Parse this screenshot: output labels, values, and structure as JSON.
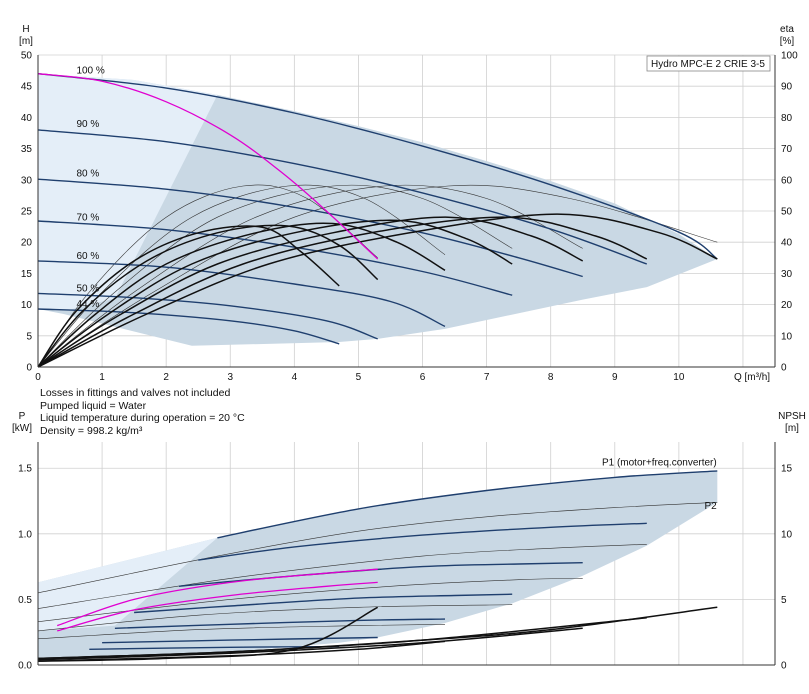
{
  "colors": {
    "envelope": "#c9d8e4",
    "envelope_light": "#e4eef8",
    "curve_blue": "#1f3f6e",
    "curve_black": "#111111",
    "curve_magenta": "#e000d0",
    "grid": "#d0d0d0"
  },
  "notes": [
    "Losses in fittings and valves not included",
    "Pumped liquid = Water",
    "Liquid temperature during operation = 20 °C",
    "Density = 998.2 kg/m³"
  ],
  "chart_data": [
    {
      "type": "line",
      "title": "Hydro MPC-E 2 CRIE 3-5",
      "ylabel_left": "H\n[m]",
      "ylabel_right": "eta\n[%]",
      "xlabel": "Q [m³/h]",
      "xlim": [
        0,
        11.5
      ],
      "ylim_left": [
        0,
        50
      ],
      "ylim_right": [
        0,
        100
      ],
      "xticks": [
        0,
        1,
        2,
        3,
        4,
        5,
        6,
        7,
        8,
        9,
        10
      ],
      "yticks_left": [
        0,
        5,
        10,
        15,
        20,
        25,
        30,
        35,
        40,
        45,
        50
      ],
      "yticks_right": [
        0,
        10,
        20,
        30,
        40,
        50,
        60,
        70,
        80,
        90,
        100
      ],
      "grid": true,
      "speed_labels": [
        {
          "text": "100 %",
          "x": 0.6,
          "y": 47
        },
        {
          "text": "90 %",
          "x": 0.6,
          "y": 38.5
        },
        {
          "text": "80 %",
          "x": 0.6,
          "y": 30.5
        },
        {
          "text": "70 %",
          "x": 0.6,
          "y": 23.5
        },
        {
          "text": "60 %",
          "x": 0.6,
          "y": 17.3
        },
        {
          "text": "50 %",
          "x": 0.6,
          "y": 12.1
        },
        {
          "text": "44 %",
          "x": 0.6,
          "y": 9.6
        }
      ],
      "envelope": {
        "x": [
          0,
          0,
          1.5,
          2.8,
          4.0,
          5.0,
          6.0,
          7.0,
          8.0,
          9.0,
          10.0,
          10.6,
          9.5,
          8.5,
          7.4,
          6.35,
          5.3,
          4.7,
          2.4,
          0.4
        ],
        "y": [
          9.3,
          47,
          46,
          43.6,
          41,
          38.6,
          36,
          33,
          29.8,
          26.2,
          21.3,
          17.3,
          12.8,
          10.8,
          8.4,
          6.1,
          4.5,
          4,
          3.4,
          8.5
        ]
      },
      "envelope_light": {
        "x": [
          0,
          0,
          1.5,
          2.8,
          1.2,
          0.5
        ],
        "y": [
          9.3,
          47,
          46,
          43.6,
          11,
          9.2
        ]
      },
      "series": [
        {
          "name": "100 %",
          "color": "blue",
          "x": [
            0,
            2,
            4,
            6,
            8,
            10,
            10.6
          ],
          "y": [
            47,
            44.7,
            40.7,
            35.4,
            29.2,
            21.6,
            17.3
          ]
        },
        {
          "name": "90 %",
          "color": "blue",
          "x": [
            0,
            2,
            4,
            6,
            8,
            9.5
          ],
          "y": [
            38,
            36.1,
            32.6,
            27.9,
            22.1,
            16.5
          ]
        },
        {
          "name": "80 %",
          "color": "blue",
          "x": [
            0,
            2,
            4,
            6,
            7.5,
            8.5
          ],
          "y": [
            30.1,
            28.5,
            25.6,
            21.5,
            17.5,
            14.5
          ]
        },
        {
          "name": "70 %",
          "color": "blue",
          "x": [
            0,
            2,
            4,
            6,
            7.4
          ],
          "y": [
            23.4,
            22.0,
            19.2,
            15.3,
            11.5
          ]
        },
        {
          "name": "60 %",
          "color": "blue",
          "x": [
            0,
            2,
            4,
            5.5,
            6.35
          ],
          "y": [
            17.0,
            16.0,
            13.3,
            10.5,
            6.5
          ]
        },
        {
          "name": "50 %",
          "color": "blue",
          "x": [
            0,
            1.5,
            3,
            4.5,
            5.3
          ],
          "y": [
            11.8,
            11.1,
            9.8,
            7.4,
            4.5
          ]
        },
        {
          "name": "44 %",
          "color": "blue",
          "x": [
            0,
            1.5,
            3,
            4,
            4.7
          ],
          "y": [
            9.3,
            8.7,
            7.4,
            5.8,
            3.7
          ]
        },
        {
          "name": "",
          "color": "magenta",
          "x": [
            0,
            1,
            2,
            3,
            3.8,
            4.5,
            5.3
          ],
          "y": [
            47,
            45.8,
            42.5,
            37.2,
            31.2,
            25,
            17.3
          ]
        },
        {
          "name": "",
          "color": "black",
          "x": [
            0,
            0.6,
            1.5,
            2.5,
            3.5,
            4.1,
            4.7
          ],
          "y": [
            0,
            9,
            17,
            21.5,
            22.4,
            18.5,
            13
          ]
        },
        {
          "name": "",
          "color": "black",
          "x": [
            0,
            0.7,
            1.7,
            2.8,
            3.9,
            4.7,
            5.3
          ],
          "y": [
            0,
            9,
            17,
            21.5,
            22.6,
            19.5,
            14
          ]
        },
        {
          "name": "",
          "color": "black",
          "x": [
            0,
            0.9,
            2.0,
            3.4,
            4.6,
            5.6,
            6.35
          ],
          "y": [
            0,
            8.5,
            16.5,
            21.5,
            23,
            20,
            15.5
          ]
        },
        {
          "name": "",
          "color": "black",
          "x": [
            0,
            1.1,
            2.4,
            4.0,
            5.6,
            6.7,
            7.4
          ],
          "y": [
            0,
            8.5,
            16.5,
            21.5,
            23.5,
            20.5,
            16.5
          ]
        },
        {
          "name": "",
          "color": "black",
          "x": [
            0,
            1.3,
            2.8,
            4.6,
            6.4,
            7.7,
            8.5
          ],
          "y": [
            0,
            8.5,
            16.5,
            21.5,
            24,
            21,
            17
          ]
        },
        {
          "name": "",
          "color": "black",
          "x": [
            0,
            1.5,
            3.2,
            5.2,
            7.3,
            8.7,
            9.5
          ],
          "y": [
            0,
            8.5,
            16.5,
            21.5,
            24,
            21,
            17.3
          ]
        },
        {
          "name": "",
          "color": "black",
          "x": [
            0,
            1.7,
            3.6,
            5.8,
            8.1,
            9.7,
            10.6
          ],
          "y": [
            0,
            8.5,
            16.5,
            21.5,
            24.5,
            21.5,
            17.3
          ]
        },
        {
          "name": "",
          "color": "thin",
          "x": [
            0,
            0.8,
            2.0,
            3.2,
            4.2,
            5.3
          ],
          "y": [
            0,
            12,
            24,
            29,
            27,
            17.5
          ]
        },
        {
          "name": "",
          "color": "thin",
          "x": [
            0,
            1.0,
            2.4,
            3.9,
            5.1,
            6.35
          ],
          "y": [
            0,
            12,
            24,
            29,
            27,
            18
          ]
        },
        {
          "name": "",
          "color": "thin",
          "x": [
            0,
            1.2,
            2.8,
            4.6,
            6.0,
            7.4
          ],
          "y": [
            0,
            12,
            24,
            29,
            27,
            19
          ]
        },
        {
          "name": "",
          "color": "thin",
          "x": [
            0,
            1.5,
            3.4,
            5.4,
            7.0,
            8.5
          ],
          "y": [
            0,
            12,
            24,
            29,
            27,
            19
          ]
        },
        {
          "name": "",
          "color": "thin",
          "x": [
            0,
            1.8,
            4.0,
            6.4,
            8.3,
            10.6
          ],
          "y": [
            0,
            12,
            24,
            29,
            27,
            20
          ]
        }
      ]
    },
    {
      "type": "line",
      "ylabel_left": "P\n[kW]",
      "ylabel_right": "NPSH\n[m]",
      "xlim": [
        0,
        11.5
      ],
      "ylim_left": [
        0,
        1.7
      ],
      "ylim_right": [
        0,
        17
      ],
      "yticks_left": [
        0.0,
        0.5,
        1.0,
        1.5
      ],
      "yticks_left_labels": [
        "0.0",
        "0.5",
        "1.0",
        "1.5"
      ],
      "yticks_right": [
        0,
        5,
        10,
        15
      ],
      "grid": true,
      "annotations": [
        {
          "text": "P1 (motor+freq.converter)",
          "x": 8.8,
          "y": 1.52
        },
        {
          "text": "P2",
          "x": 10.4,
          "y": 1.19
        }
      ],
      "envelope": {
        "x": [
          0,
          0,
          2.8,
          5,
          7,
          9,
          10.6,
          10.6,
          9.5,
          8.5,
          7.4,
          6.35,
          5.3,
          4.7,
          2.5,
          0
        ],
        "y": [
          0.24,
          0.63,
          0.97,
          1.19,
          1.33,
          1.43,
          1.48,
          1.24,
          0.91,
          0.68,
          0.47,
          0.32,
          0.21,
          0.17,
          0.08,
          0.04
        ]
      },
      "envelope_light": {
        "x": [
          0,
          0,
          2.8,
          1.2,
          0
        ],
        "y": [
          0.24,
          0.63,
          0.97,
          0.3,
          0.26
        ]
      },
      "series": [
        {
          "name": "P1 (motor+freq.converter)",
          "color": "blue",
          "x": [
            2.8,
            5,
            7,
            9,
            10.6
          ],
          "y": [
            0.97,
            1.19,
            1.33,
            1.43,
            1.48
          ]
        },
        {
          "name": "",
          "color": "blue",
          "x": [
            2.5,
            4,
            6,
            8,
            9.5
          ],
          "y": [
            0.8,
            0.9,
            0.99,
            1.05,
            1.08
          ]
        },
        {
          "name": "",
          "color": "blue",
          "x": [
            2.2,
            4,
            6,
            7.5,
            8.5
          ],
          "y": [
            0.6,
            0.68,
            0.75,
            0.77,
            0.78
          ]
        },
        {
          "name": "",
          "color": "blue",
          "x": [
            1.5,
            3,
            5,
            6.5,
            7.4
          ],
          "y": [
            0.4,
            0.45,
            0.51,
            0.53,
            0.54
          ]
        },
        {
          "name": "",
          "color": "blue",
          "x": [
            1.2,
            3,
            5,
            6.35
          ],
          "y": [
            0.28,
            0.31,
            0.34,
            0.35
          ]
        },
        {
          "name": "",
          "color": "blue",
          "x": [
            1.0,
            3,
            5.3
          ],
          "y": [
            0.17,
            0.19,
            0.21
          ]
        },
        {
          "name": "",
          "color": "blue",
          "x": [
            0.8,
            3,
            4.7
          ],
          "y": [
            0.12,
            0.135,
            0.14
          ]
        },
        {
          "name": "",
          "color": "magenta",
          "x": [
            0.3,
            1.5,
            3,
            4.5,
            5.3
          ],
          "y": [
            0.3,
            0.5,
            0.63,
            0.7,
            0.73
          ]
        },
        {
          "name": "",
          "color": "magenta",
          "x": [
            0.3,
            1.5,
            3,
            4.5,
            5.3
          ],
          "y": [
            0.26,
            0.42,
            0.53,
            0.6,
            0.63
          ]
        },
        {
          "name": "P2",
          "color": "thin",
          "x": [
            0,
            2.8,
            5,
            7,
            9,
            10.6
          ],
          "y": [
            0.55,
            0.83,
            1.02,
            1.13,
            1.2,
            1.24
          ]
        },
        {
          "name": "",
          "color": "thin",
          "x": [
            0,
            3,
            6,
            8,
            9.5
          ],
          "y": [
            0.43,
            0.66,
            0.83,
            0.89,
            0.92
          ]
        },
        {
          "name": "",
          "color": "thin",
          "x": [
            0,
            3,
            5.5,
            7.5,
            8.5
          ],
          "y": [
            0.33,
            0.5,
            0.6,
            0.65,
            0.66
          ]
        },
        {
          "name": "",
          "color": "thin",
          "x": [
            0,
            2.5,
            5,
            7.4
          ],
          "y": [
            0.26,
            0.38,
            0.44,
            0.46
          ]
        },
        {
          "name": "",
          "color": "thin",
          "x": [
            0,
            2.5,
            5,
            6.35
          ],
          "y": [
            0.2,
            0.27,
            0.3,
            0.31
          ]
        },
        {
          "name": "",
          "color": "black",
          "x": [
            0,
            2,
            4,
            5.3
          ],
          "y": [
            0.03,
            0.05,
            0.12,
            0.44
          ]
        },
        {
          "name": "",
          "color": "black",
          "x": [
            0,
            3,
            5,
            6.35
          ],
          "y": [
            0.03,
            0.07,
            0.12,
            0.18
          ]
        },
        {
          "name": "",
          "color": "black",
          "x": [
            0,
            3,
            6,
            8.5
          ],
          "y": [
            0.04,
            0.09,
            0.17,
            0.28
          ]
        },
        {
          "name": "",
          "color": "black",
          "x": [
            0,
            3,
            6,
            9.5
          ],
          "y": [
            0.05,
            0.1,
            0.19,
            0.36
          ]
        },
        {
          "name": "",
          "color": "black",
          "x": [
            0,
            3,
            6,
            8,
            10.6
          ],
          "y": [
            0.05,
            0.1,
            0.19,
            0.27,
            0.44
          ]
        }
      ]
    }
  ]
}
